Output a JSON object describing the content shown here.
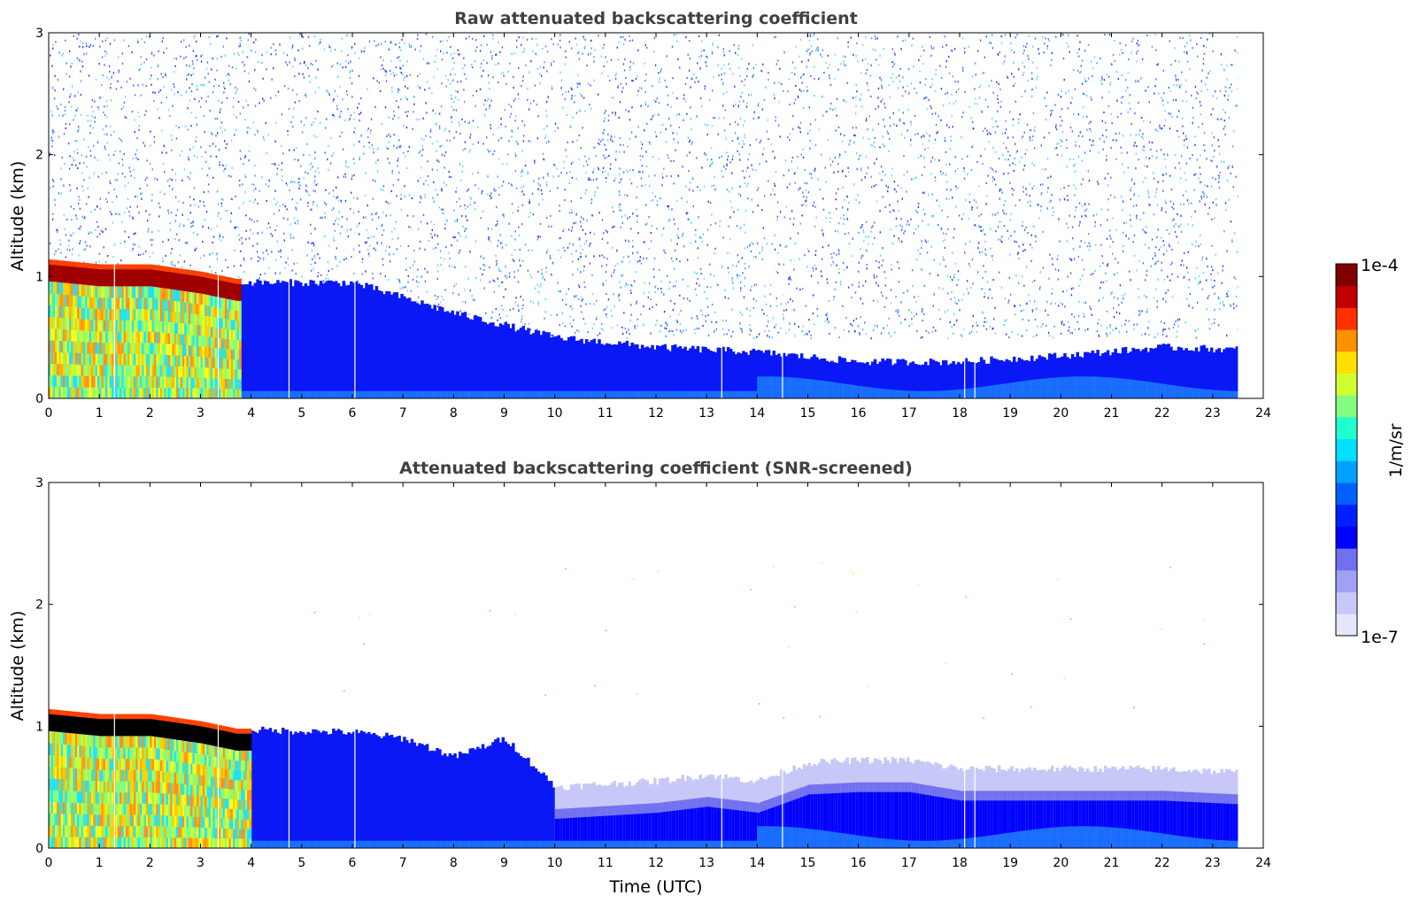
{
  "chart_data": [
    {
      "type": "heatmap",
      "title": "Raw attenuated backscattering coefficient",
      "xlabel": "",
      "ylabel": "Altitude (km)",
      "xlim": [
        0,
        24
      ],
      "ylim": [
        0,
        3
      ],
      "xticks": [
        "0",
        "1",
        "2",
        "3",
        "4",
        "5",
        "6",
        "7",
        "8",
        "9",
        "10",
        "11",
        "12",
        "13",
        "14",
        "15",
        "16",
        "17",
        "18",
        "19",
        "20",
        "21",
        "22",
        "23",
        "24"
      ],
      "yticks": [
        "0",
        "1",
        "2",
        "3"
      ],
      "cloud_top_km": [
        [
          0,
          1.12
        ],
        [
          1,
          1.08
        ],
        [
          2,
          1.08
        ],
        [
          3,
          1.02
        ],
        [
          3.7,
          0.96
        ]
      ],
      "high_signal_region": {
        "x_start": 0,
        "x_end": 3.8,
        "top_km": 1.1
      },
      "boundary_layer_top_km": [
        [
          4,
          0.95
        ],
        [
          6,
          0.95
        ],
        [
          8,
          0.7
        ],
        [
          10,
          0.5
        ],
        [
          12,
          0.42
        ],
        [
          14,
          0.38
        ],
        [
          16,
          0.3
        ],
        [
          18,
          0.3
        ],
        [
          20,
          0.35
        ],
        [
          22,
          0.42
        ],
        [
          23.5,
          0.4
        ]
      ],
      "data_gaps_utc": [
        1.3,
        3.35,
        4.75,
        6.05,
        13.3,
        14.5,
        18.1,
        18.3
      ],
      "data_end_utc": 23.5
    },
    {
      "type": "heatmap",
      "title": "Attenuated backscattering coefficient (SNR-screened)",
      "xlabel": "Time (UTC)",
      "ylabel": "Altitude (km)",
      "xlim": [
        0,
        24
      ],
      "ylim": [
        0,
        3
      ],
      "xticks": [
        "0",
        "1",
        "2",
        "3",
        "4",
        "5",
        "6",
        "7",
        "8",
        "9",
        "10",
        "11",
        "12",
        "13",
        "14",
        "15",
        "16",
        "17",
        "18",
        "19",
        "20",
        "21",
        "22",
        "23",
        "24"
      ],
      "yticks": [
        "0",
        "1",
        "2",
        "3"
      ],
      "cloud_top_km": [
        [
          0,
          1.12
        ],
        [
          1,
          1.08
        ],
        [
          2,
          1.08
        ],
        [
          3,
          1.02
        ],
        [
          3.7,
          0.96
        ]
      ],
      "high_signal_region": {
        "x_start": 0,
        "x_end": 4.0,
        "top_km": 1.1
      },
      "screened_top_km": [
        [
          4,
          0.97
        ],
        [
          6,
          0.95
        ],
        [
          7,
          0.9
        ],
        [
          8,
          0.75
        ],
        [
          9,
          0.9
        ],
        [
          10,
          0.5
        ],
        [
          12,
          0.55
        ],
        [
          13,
          0.6
        ],
        [
          14,
          0.55
        ],
        [
          15,
          0.7
        ],
        [
          16,
          0.72
        ],
        [
          17,
          0.72
        ],
        [
          18,
          0.65
        ],
        [
          20,
          0.65
        ],
        [
          22,
          0.65
        ],
        [
          23.5,
          0.62
        ]
      ],
      "data_gaps_utc": [
        1.3,
        3.35,
        4.75,
        6.05,
        13.3,
        14.5,
        18.1,
        18.3
      ],
      "data_end_utc": 23.5
    }
  ],
  "colorbar": {
    "label": "1/m/sr",
    "min_label": "1e-7",
    "max_label": "1e-4",
    "colors": [
      "#e6e6fa",
      "#c8c8f8",
      "#a0a0f4",
      "#7070f0",
      "#0000ff",
      "#0020ff",
      "#0060ff",
      "#00a0ff",
      "#00e0ff",
      "#20ffd0",
      "#80ff80",
      "#d0ff30",
      "#ffe000",
      "#ff9000",
      "#ff3000",
      "#c00000",
      "#800000"
    ]
  }
}
